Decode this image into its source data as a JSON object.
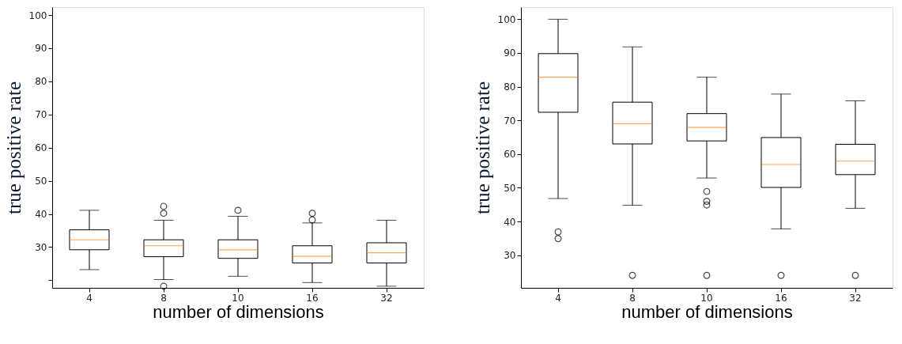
{
  "chart_data": [
    {
      "type": "box",
      "xlabel": "number of dimensions",
      "ylabel": "true positive rate",
      "categories": [
        "4",
        "8",
        "10",
        "16",
        "32"
      ],
      "ylim": [
        17.7,
        102.4
      ],
      "yticks": [
        {
          "value": 20,
          "label": null
        },
        30,
        40,
        50,
        60,
        70,
        80,
        90,
        100
      ],
      "grid": false,
      "boxes": [
        {
          "low": 23.2,
          "q1": 29.2,
          "median": 32.2,
          "q3": 35.2,
          "high": 41.1
        },
        {
          "low": 20.2,
          "q1": 27.1,
          "median": 30.4,
          "q3": 32.2,
          "high": 38.1,
          "outliers": [
            42.3,
            40.2,
            18.2
          ]
        },
        {
          "low": 21.2,
          "q1": 26.6,
          "median": 29.2,
          "q3": 32.2,
          "high": 39.3,
          "outliers": [
            41.1
          ]
        },
        {
          "low": 19.3,
          "q1": 25.2,
          "median": 27.2,
          "q3": 30.4,
          "high": 37.3,
          "outliers": [
            40.2,
            38.2
          ]
        },
        {
          "low": 18.2,
          "q1": 25.2,
          "median": 28.3,
          "q3": 31.3,
          "high": 38.1
        }
      ]
    },
    {
      "type": "box",
      "xlabel": "number of dimensions",
      "ylabel": "true positive rate",
      "categories": [
        "4",
        "8",
        "10",
        "16",
        "32"
      ],
      "ylim": [
        20.3,
        103.6
      ],
      "yticks": [
        30,
        40,
        50,
        60,
        70,
        80,
        90,
        100
      ],
      "grid": false,
      "boxes": [
        {
          "low": 46.8,
          "q1": 72.4,
          "median": 82.8,
          "q3": 89.8,
          "high": 100,
          "outliers": [
            36.9,
            34.9
          ]
        },
        {
          "low": 44.8,
          "q1": 63,
          "median": 69,
          "q3": 75.4,
          "high": 91.8,
          "outliers": [
            24
          ]
        },
        {
          "low": 52.9,
          "q1": 63.9,
          "median": 67.9,
          "q3": 72,
          "high": 82.8,
          "outliers": [
            48.9,
            46,
            44.9,
            24
          ]
        },
        {
          "low": 37.8,
          "q1": 50.1,
          "median": 56.9,
          "q3": 64.9,
          "high": 77.8,
          "outliers": [
            24
          ]
        },
        {
          "low": 43.9,
          "q1": 53.9,
          "median": 57.9,
          "q3": 62.9,
          "high": 75.8,
          "outliers": [
            24
          ]
        }
      ]
    }
  ]
}
